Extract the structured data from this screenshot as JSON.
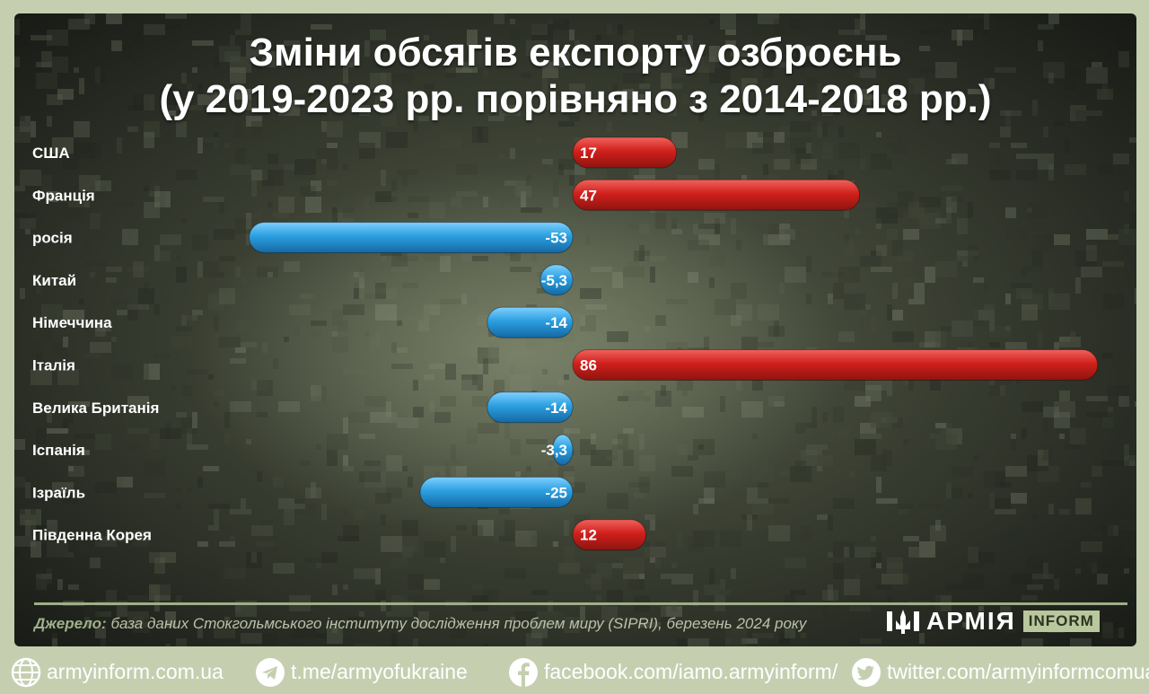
{
  "title_line1": "Зміни обсягів експорту озброєнь",
  "title_line2": "(у 2019-2023 рр. порівняно з 2014-2018 рр.)",
  "chart_data": {
    "type": "bar",
    "orientation": "horizontal",
    "title": "Зміни обсягів експорту озброєнь (у 2019-2023 рр. порівняно з 2014-2018 рр.)",
    "categories": [
      "США",
      "Франція",
      "росія",
      "Китай",
      "Німеччина",
      "Італія",
      "Велика Британія",
      "Іспанія",
      "Ізраїль",
      "Південна Корея"
    ],
    "values": [
      17,
      47,
      -53,
      -5.3,
      -14,
      86,
      -14,
      -3.3,
      -25,
      12
    ],
    "value_labels": [
      "17",
      "47",
      "-53",
      "-5,3",
      "-14",
      "86",
      "-14",
      "-3,3",
      "-25",
      "12"
    ],
    "colors": {
      "positive": "#d0201c",
      "negative": "#2b9fe0"
    },
    "grid": false,
    "legend": "none"
  },
  "source": {
    "label": "Джерело:",
    "text": "база даних Стокгольмського інституту дослідження проблем миру (SIPRI), березень 2024 року"
  },
  "logo": {
    "name": "АРМІЯ",
    "badge": "INFORM"
  },
  "footer": {
    "website": "armyinform.com.ua",
    "telegram": "t.me/armyofukraine",
    "facebook": "facebook.com/iamo.armyinform/",
    "twitter": "twitter.com/armyinformcomua"
  }
}
